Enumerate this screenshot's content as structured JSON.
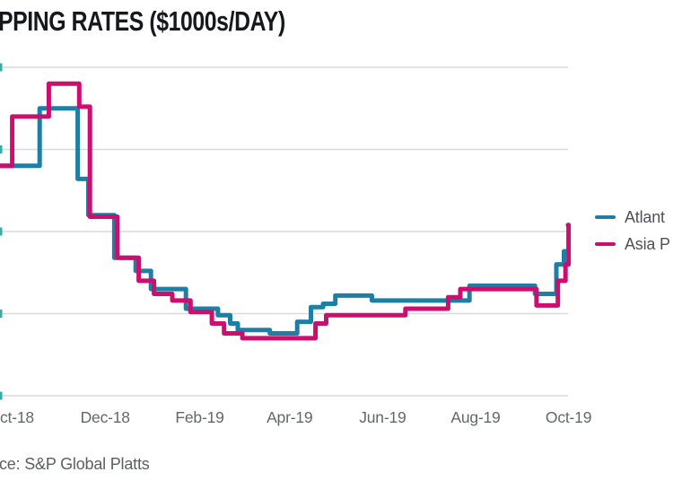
{
  "page": {
    "title": "PPING RATES ($1000s/DAY)",
    "source": "ce: S&P Global Platts"
  },
  "legend": {
    "items": [
      {
        "label": "Atlant",
        "color": "#1E7FA4"
      },
      {
        "label": "Asia P",
        "color": "#CC0E6F"
      }
    ]
  },
  "x_ticks": [
    "ct-18",
    "Dec-18",
    "Feb-19",
    "Apr-19",
    "Jun-19",
    "Aug-19",
    "Oct-19"
  ],
  "colors": {
    "atlantic_line": "#1E7FA4",
    "asia_pacific_line": "#CC0E6F",
    "gridline": "#D9D9D9",
    "title_text": "#16181D",
    "tick_text": "#63676C",
    "legend_text": "#4E5257",
    "source_text": "#5B5F64",
    "y_label_fragment": "#35ACA8"
  },
  "chart_data": {
    "type": "line",
    "step": "after",
    "title": "PPING RATES ($1000s/DAY)",
    "unit": "$1000s/day",
    "x_tick_labels": [
      "ct-18",
      "Dec-18",
      "Feb-19",
      "Apr-19",
      "Jun-19",
      "Aug-19",
      "Oct-19"
    ],
    "x_range": [
      "2018-09-23",
      "2019-10-01"
    ],
    "ylim": [
      0,
      200
    ],
    "y_gridline_values_estimated": [
      0,
      50,
      100,
      150,
      200
    ],
    "y_axis_labels_visible": false,
    "grid": true,
    "legend_position": "right",
    "series": [
      {
        "name": "Atlant",
        "color": "#1E7FA4",
        "points": [
          [
            "2018-09-23",
            140
          ],
          [
            "2018-10-19",
            175
          ],
          [
            "2018-11-13",
            132
          ],
          [
            "2018-11-20",
            110
          ],
          [
            "2018-12-07",
            84
          ],
          [
            "2018-12-21",
            76
          ],
          [
            "2018-12-31",
            65
          ],
          [
            "2019-01-23",
            53
          ],
          [
            "2019-02-13",
            49
          ],
          [
            "2019-02-21",
            44
          ],
          [
            "2019-02-26",
            40
          ],
          [
            "2019-03-19",
            38
          ],
          [
            "2019-04-06",
            45
          ],
          [
            "2019-04-15",
            54
          ],
          [
            "2019-04-23",
            56
          ],
          [
            "2019-05-01",
            61
          ],
          [
            "2019-05-25",
            58
          ],
          [
            "2019-07-28",
            67
          ],
          [
            "2019-09-09",
            62
          ],
          [
            "2019-09-23",
            80
          ],
          [
            "2019-09-28",
            88
          ]
        ]
      },
      {
        "name": "Asia P",
        "color": "#CC0E6F",
        "points": [
          [
            "2018-09-23",
            140
          ],
          [
            "2018-10-01",
            170
          ],
          [
            "2018-10-25",
            190
          ],
          [
            "2018-11-14",
            176
          ],
          [
            "2018-11-21",
            109
          ],
          [
            "2018-12-09",
            84
          ],
          [
            "2018-12-23",
            70
          ],
          [
            "2019-01-02",
            62
          ],
          [
            "2019-01-14",
            58
          ],
          [
            "2019-01-26",
            51
          ],
          [
            "2019-02-09",
            44
          ],
          [
            "2019-02-17",
            38
          ],
          [
            "2019-03-01",
            35
          ],
          [
            "2019-04-18",
            44
          ],
          [
            "2019-04-25",
            49
          ],
          [
            "2019-06-16",
            53
          ],
          [
            "2019-07-14",
            60
          ],
          [
            "2019-07-22",
            65
          ],
          [
            "2019-09-10",
            55
          ],
          [
            "2019-09-24",
            70
          ],
          [
            "2019-09-29",
            80
          ],
          [
            "2019-10-01",
            104
          ]
        ]
      }
    ]
  }
}
